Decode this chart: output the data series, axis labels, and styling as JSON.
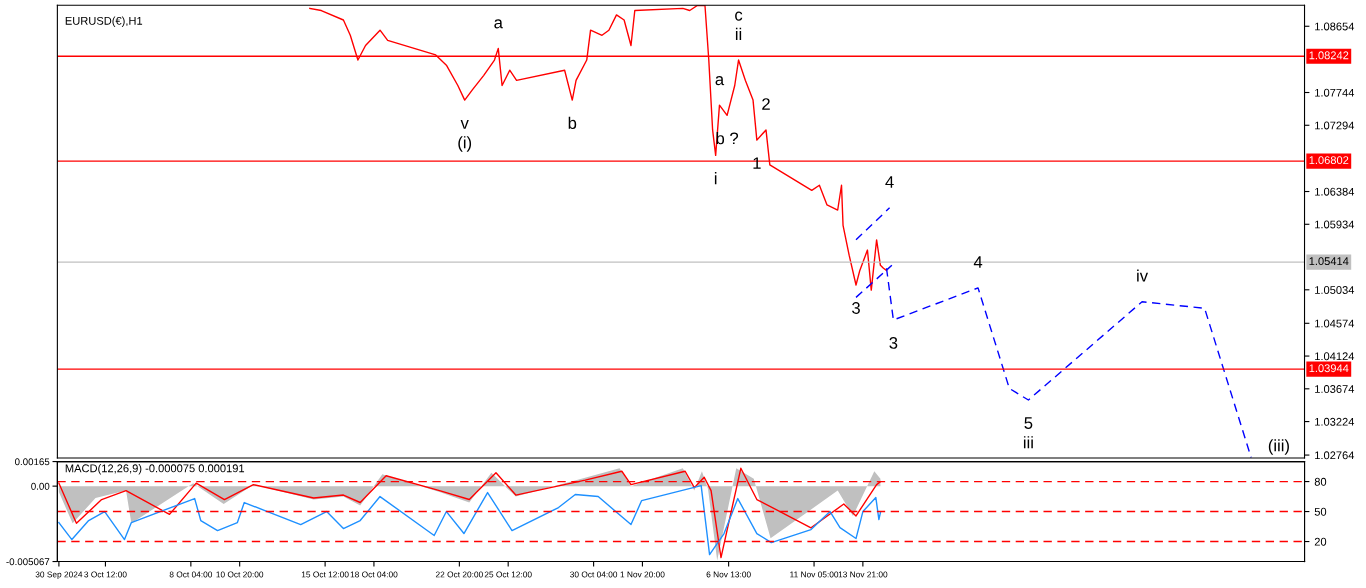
{
  "chart_data": [
    {
      "type": "line",
      "title": "EURUSD(€),H1",
      "tick_labels": "y",
      "xlim": [
        "2024-09-30T21:00",
        "2024-12-08T00:00"
      ],
      "ylim": [
        1.02723,
        1.08942
      ],
      "yticks": [
        1.08654,
        1.07744,
        1.07294,
        1.06384,
        1.05934,
        1.05034,
        1.04574,
        1.04124,
        1.03674,
        1.03224,
        1.02764
      ],
      "series": [
        {
          "color": "#ff0000",
          "line_style": "solid",
          "x": [
            "2024-10-14T16:00",
            "2024-10-15T07:00",
            "2024-10-16T12:00",
            "2024-10-16T21:00",
            "2024-10-17T07:00",
            "2024-10-17T17:00",
            "2024-10-18T12:00",
            "2024-10-18T22:00",
            "2024-10-21T13:00",
            "2024-10-22T03:00",
            "2024-10-22T18:00",
            "2024-10-23T03:00",
            "2024-10-23T13:00",
            "2024-10-24T04:00",
            "2024-10-24T18:00",
            "2024-10-24T23:00",
            "2024-10-25T04:00",
            "2024-10-25T14:00",
            "2024-10-25T23:00",
            "2024-10-28T14:00",
            "2024-10-29T00:00",
            "2024-10-29T05:00",
            "2024-10-29T19:00",
            "2024-10-30T00:00",
            "2024-10-30T15:00",
            "2024-10-31T00:00",
            "2024-10-31T10:00",
            "2024-10-31T20:00",
            "2024-11-01T05:00",
            "2024-11-01T10:00",
            "2024-11-04T01:00",
            "2024-11-04T10:00",
            "2024-11-04T20:00",
            "2024-11-05T06:00",
            "2024-11-05T11:00",
            "2024-11-05T16:00",
            "2024-11-05T20:00",
            "2024-11-06T01:00",
            "2024-11-06T11:00",
            "2024-11-06T21:00",
            "2024-11-07T02:00",
            "2024-11-07T11:00",
            "2024-11-07T21:00",
            "2024-11-08T02:00",
            "2024-11-08T08:00",
            "2024-11-08T14:00",
            "2024-11-08T19:00",
            "2024-11-11T02:00",
            "2024-11-11T12:00",
            "2024-11-11T22:00",
            "2024-11-12T12:00",
            "2024-11-12T17:00",
            "2024-11-12T19:00",
            "2024-11-13T03:00",
            "2024-11-13T12:00",
            "2024-11-13T17:00",
            "2024-11-14T03:00",
            "2024-11-14T08:00",
            "2024-11-14T15:00",
            "2024-11-14T20:00",
            "2024-11-15T00:00",
            "2024-11-15T04:00"
          ],
          "values": [
            1.089,
            1.0887,
            1.0874,
            1.0853,
            1.0819,
            1.0839,
            1.086,
            1.0846,
            1.0826,
            1.0812,
            1.0784,
            1.0764,
            1.0778,
            1.0798,
            1.0819,
            1.0835,
            1.0784,
            1.0805,
            1.0791,
            1.0805,
            1.0764,
            1.0791,
            1.0819,
            1.086,
            1.0853,
            1.086,
            1.0881,
            1.0874,
            1.0839,
            1.0887,
            1.089,
            1.0887,
            1.0894,
            1.0894,
            1.0819,
            1.0723,
            1.0688,
            1.0757,
            1.0743,
            1.0784,
            1.0819,
            1.0791,
            1.0764,
            1.0709,
            1.0716,
            1.0723,
            1.0675,
            1.064,
            1.0647,
            1.062,
            1.0613,
            1.0647,
            1.0592,
            1.0551,
            1.051,
            1.053,
            1.0558,
            1.0503,
            1.0572,
            1.0537,
            1.0533,
            1.053
          ]
        },
        {
          "color": "#0000ff",
          "line_style": "dashed",
          "x": [
            "2024-11-15T04:00",
            "2024-11-15T13:00",
            "2024-11-20T04:00",
            "2024-11-21T21:00",
            "2024-11-22T22:00",
            "2024-11-29T03:00",
            "2024-12-02T13:00",
            "2024-12-05T02:00"
          ],
          "values": [
            1.0533,
            1.0462,
            1.0506,
            1.0368,
            1.0352,
            1.0487,
            1.0478,
            1.0273
          ]
        },
        {
          "color": "#0000ff",
          "line_style": "dashed",
          "x": [
            "2024-11-13T12:00",
            "2024-11-15T11:00"
          ],
          "values": [
            1.0493,
            1.0537
          ]
        },
        {
          "color": "#0000ff",
          "line_style": "dashed",
          "x": [
            "2024-11-13T12:00",
            "2024-11-15T08:00"
          ],
          "values": [
            1.0572,
            1.0616
          ]
        }
      ],
      "ref_lines": [
        {
          "axis": "y",
          "value": 1.08242,
          "label": "1.08242",
          "color": "#ff0000"
        },
        {
          "axis": "y",
          "value": 1.06802,
          "label": "1.06802",
          "color": "#ff0000"
        },
        {
          "axis": "y",
          "value": 1.03944,
          "label": "1.03944",
          "color": "#ff0000"
        },
        {
          "axis": "y",
          "value": 1.05414,
          "label": "1.05414",
          "color": "#c0c0c0"
        }
      ],
      "annotations": [
        {
          "text": "v",
          "x": "2024-10-23T03:00",
          "y": 1.0764
        },
        {
          "text": "(i)",
          "x": "2024-10-23T03:00",
          "y": 1.0764
        },
        {
          "text": "a",
          "x": "2024-10-24T23:00",
          "y": 1.0835
        },
        {
          "text": "b",
          "x": "2024-10-29T00:00",
          "y": 1.0764
        },
        {
          "text": "i",
          "x": "2024-11-05T20:00",
          "y": 1.0688
        },
        {
          "text": "ii",
          "x": "2024-11-07T02:00",
          "y": 1.0819
        },
        {
          "text": "c",
          "x": "2024-11-07T02:00",
          "y": 1.0819
        },
        {
          "text": "a",
          "x": "2024-11-06T01:00",
          "y": 1.0757
        },
        {
          "text": "b ?",
          "x": "2024-11-06T11:00",
          "y": 1.0743
        },
        {
          "text": "1",
          "x": "2024-11-08T02:00",
          "y": 1.0709
        },
        {
          "text": "2",
          "x": "2024-11-08T14:00",
          "y": 1.0723
        },
        {
          "text": "4",
          "x": "2024-11-15T08:00",
          "y": 1.0616
        },
        {
          "text": "3",
          "x": "2024-11-13T12:00",
          "y": 1.051
        },
        {
          "text": "3",
          "x": "2024-11-15T13:00",
          "y": 1.0462
        },
        {
          "text": "4",
          "x": "2024-11-20T04:00",
          "y": 1.0506
        },
        {
          "text": "5",
          "x": "2024-11-22T22:00",
          "y": 1.0352
        },
        {
          "text": "iii",
          "x": "2024-11-22T22:00",
          "y": 1.0352
        },
        {
          "text": "iv",
          "x": "2024-11-29T03:00",
          "y": 1.0487
        },
        {
          "text": "(iii)",
          "x": "2024-12-05T02:00",
          "y": 1.0273
        }
      ]
    },
    {
      "type": "line",
      "title": "MACD(12,26,9) -0.000075 0.000191",
      "xlim": [
        "2024-09-30T21:00",
        "2024-12-08T00:00"
      ],
      "ylim": [
        -0.005067,
        0.00165
      ],
      "y2lim": [
        0,
        100
      ],
      "xticks": [
        {
          "value": "2024-09-30T23:00",
          "label": "30 Sep 2024"
        },
        {
          "value": "2024-10-03T12:00",
          "label": "3 Oct 12:00"
        },
        {
          "value": "2024-10-08T04:00",
          "label": "8 Oct 04:00"
        },
        {
          "value": "2024-10-10T20:00",
          "label": "10 Oct 20:00"
        },
        {
          "value": "2024-10-15T12:00",
          "label": "15 Oct 12:00"
        },
        {
          "value": "2024-10-18T04:00",
          "label": "18 Oct 04:00"
        },
        {
          "value": "2024-10-22T20:00",
          "label": "22 Oct 20:00"
        },
        {
          "value": "2024-10-25T12:00",
          "label": "25 Oct 12:00"
        },
        {
          "value": "2024-10-30T04:00",
          "label": "30 Oct 04:00"
        },
        {
          "value": "2024-11-01T20:00",
          "label": "1 Nov 20:00"
        },
        {
          "value": "2024-11-06T13:00",
          "label": "6 Nov 13:00"
        },
        {
          "value": "2024-11-11T05:00",
          "label": "11 Nov 05:00"
        },
        {
          "value": "2024-11-13T21:00",
          "label": "13 Nov 21:00"
        }
      ],
      "yticks": [
        {
          "value": 0.00165,
          "label": "0.00165"
        },
        {
          "value": 0,
          "label": "0.00"
        },
        {
          "value": -0.005067,
          "label": "-0.005067"
        }
      ],
      "y2ticks": [
        20,
        50,
        80
      ],
      "series": [
        {
          "type": "area",
          "color": "#c0c0c0",
          "x": [
            "2024-09-30T23:00",
            "2024-10-01T17:00",
            "2024-10-02T23:00",
            "2024-10-04T15:00",
            "2024-10-04T22:00",
            "2024-10-08T07:00",
            "2024-10-09T23:00",
            "2024-10-11T14:00",
            "2024-10-14T21:00",
            "2024-10-16T12:00",
            "2024-10-17T10:00",
            "2024-10-18T15:00",
            "2024-10-21T18:00",
            "2024-10-23T09:00",
            "2024-10-24T14:00",
            "2024-10-25T22:00",
            "2024-10-29T12:00",
            "2024-10-31T14:00",
            "2024-11-01T05:00",
            "2024-11-04T01:00",
            "2024-11-04T16:00",
            "2024-11-05T02:00",
            "2024-11-05T10:00",
            "2024-11-05T22:00",
            "2024-11-06T23:00",
            "2024-11-07T22:00",
            "2024-11-08T20:00",
            "2024-11-12T12:00",
            "2024-11-13T08:00",
            "2024-11-14T12:00",
            "2024-11-14T20:00"
          ],
          "values": [
            -0.0004,
            -0.0025,
            -0.0008,
            -0.0003,
            -0.0025,
            0.0002,
            -0.0012,
            0.0001,
            -0.0009,
            -0.0007,
            -0.0013,
            0.0008,
            -0.0004,
            -0.0011,
            0.0009,
            -0.0007,
            0.0005,
            0.0012,
            0.0,
            0.0012,
            -0.0003,
            0.001,
            -0.0002,
            -0.005,
            0.0012,
            0.0005,
            -0.0035,
            -0.0003,
            -0.002,
            0.001,
            0.0005
          ]
        },
        {
          "type": "line",
          "color": "#ff0000",
          "line_style": "solid",
          "x": [
            "2024-09-30T23:00",
            "2024-10-01T22:00",
            "2024-10-03T07:00",
            "2024-10-04T15:00",
            "2024-10-07T00:00",
            "2024-10-08T11:00",
            "2024-10-10T00:00",
            "2024-10-11T14:00",
            "2024-10-14T21:00",
            "2024-10-16T12:00",
            "2024-10-17T10:00",
            "2024-10-18T20:00",
            "2024-10-21T18:00",
            "2024-10-23T09:00",
            "2024-10-24T20:00",
            "2024-10-25T22:00",
            "2024-10-29T17:00",
            "2024-10-31T17:00",
            "2024-11-01T05:00",
            "2024-11-04T04:00",
            "2024-11-04T16:00",
            "2024-11-05T05:00",
            "2024-11-05T14:00",
            "2024-11-06T03:00",
            "2024-11-07T05:00",
            "2024-11-08T02:00",
            "2024-11-11T01:00",
            "2024-11-12T20:00",
            "2024-11-13T12:00",
            "2024-11-14T15:00",
            "2024-11-14T20:00"
          ],
          "values": [
            0.0002,
            -0.0025,
            -0.0009,
            -0.0003,
            -0.0019,
            0.0002,
            -0.0009,
            0.0001,
            -0.0008,
            -0.0006,
            -0.0011,
            0.0007,
            -0.0003,
            -0.0009,
            0.0009,
            -0.0006,
            0.0004,
            0.001,
            0.0001,
            0.001,
            -0.0001,
            0.0006,
            -0.0003,
            -0.0048,
            0.0012,
            -0.0009,
            -0.0028,
            -0.0012,
            -0.002,
            0.0001,
            0.0003
          ]
        },
        {
          "type": "line",
          "axis": "y2",
          "color": "#1e90ff",
          "line_style": "solid",
          "x": [
            "2024-09-30T23:00",
            "2024-10-01T16:00",
            "2024-10-02T14:00",
            "2024-10-03T11:00",
            "2024-10-04T13:00",
            "2024-10-04T22:00",
            "2024-10-08T09:00",
            "2024-10-08T17:00",
            "2024-10-09T15:00",
            "2024-10-10T17:00",
            "2024-10-11T02:00",
            "2024-10-14T04:00",
            "2024-10-15T14:00",
            "2024-10-16T12:00",
            "2024-10-17T10:00",
            "2024-10-18T12:00",
            "2024-10-21T11:00",
            "2024-10-22T03:00",
            "2024-10-23T02:00",
            "2024-10-24T09:00",
            "2024-10-25T17:00",
            "2024-10-28T06:00",
            "2024-10-29T04:00",
            "2024-10-30T10:00",
            "2024-11-01T05:00",
            "2024-11-01T19:00",
            "2024-11-05T01:00",
            "2024-11-05T12:00",
            "2024-11-06T07:00",
            "2024-11-07T01:00",
            "2024-11-08T02:00",
            "2024-11-08T21:00",
            "2024-11-11T01:00",
            "2024-11-12T02:00",
            "2024-11-12T15:00",
            "2024-11-13T12:00",
            "2024-11-13T21:00",
            "2024-11-14T14:00",
            "2024-11-14T18:00",
            "2024-11-14T20:00"
          ],
          "values": [
            39,
            22,
            41,
            50,
            22,
            39,
            63,
            41,
            31,
            39,
            59,
            37,
            50,
            33,
            41,
            65,
            26,
            50,
            28,
            69,
            31,
            54,
            67,
            65,
            37,
            61,
            76,
            7,
            28,
            63,
            28,
            19,
            32,
            50,
            34,
            23,
            50,
            64,
            42,
            49
          ]
        }
      ],
      "ref_lines": [
        {
          "axis": "y2",
          "value": 80,
          "color": "#ff0000",
          "line_style": "dashed"
        },
        {
          "axis": "y2",
          "value": 50,
          "color": "#ff0000",
          "line_style": "dashed"
        },
        {
          "axis": "y2",
          "value": 20,
          "color": "#ff0000",
          "line_style": "dashed"
        }
      ]
    }
  ]
}
